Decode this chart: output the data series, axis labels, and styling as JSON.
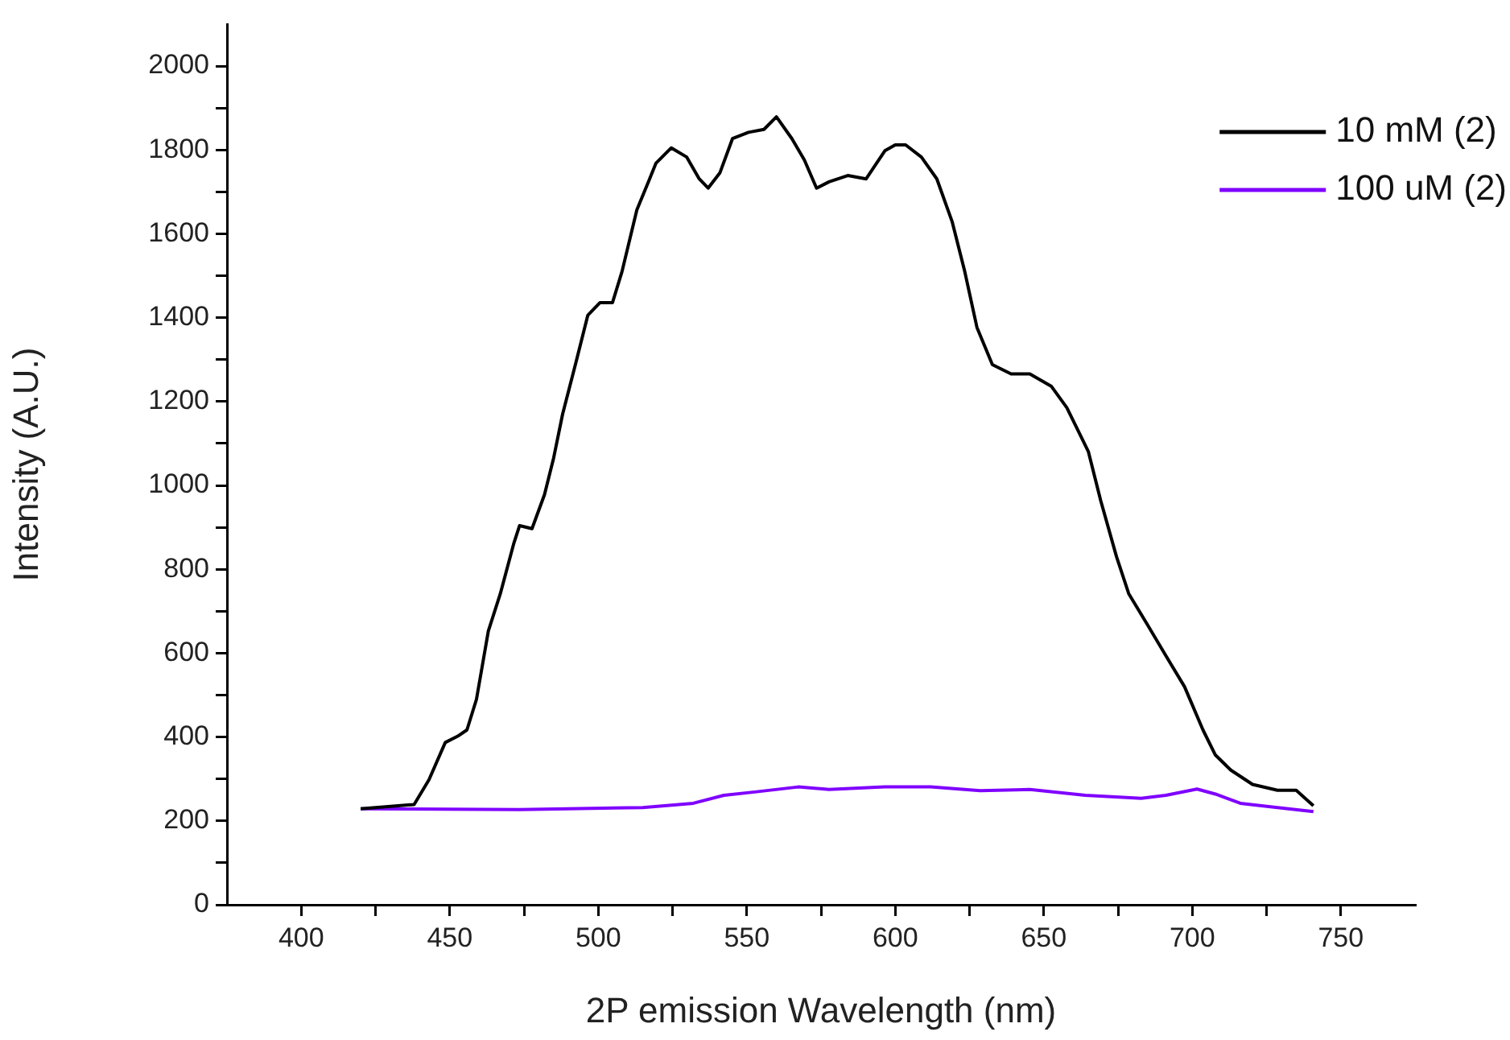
{
  "chart_data": {
    "type": "line",
    "xlabel": "2P emission Wavelength (nm)",
    "ylabel": "Intensity (A.U.)",
    "xlim": [
      375,
      775
    ],
    "ylim": [
      0,
      2100
    ],
    "xticks": [
      400,
      {
        "value": 425,
        "label": null
      },
      450,
      {
        "value": 475,
        "label": null
      },
      500,
      {
        "value": 525,
        "label": null
      },
      550,
      {
        "value": 575,
        "label": null
      },
      600,
      {
        "value": 625,
        "label": null
      },
      650,
      {
        "value": 675,
        "label": null
      },
      700,
      {
        "value": 725,
        "label": null
      },
      750
    ],
    "yticks": [
      0,
      {
        "value": 100,
        "label": null
      },
      200,
      {
        "value": 300,
        "label": null
      },
      400,
      {
        "value": 500,
        "label": null
      },
      600,
      {
        "value": 700,
        "label": null
      },
      800,
      {
        "value": 900,
        "label": null
      },
      1000,
      {
        "value": 1100,
        "label": null
      },
      1200,
      {
        "value": 1300,
        "label": null
      },
      1400,
      {
        "value": 1500,
        "label": null
      },
      1600,
      {
        "value": 1700,
        "label": null
      },
      1800,
      {
        "value": 1900,
        "label": null
      },
      2000
    ],
    "grid": false,
    "legend": "top right",
    "marker": "none",
    "line_style": "solid",
    "series": [
      {
        "name": "10 mM (2)",
        "color": "#000000",
        "x": [
          420,
          438,
          443,
          448.5,
          452.7,
          455.8,
          459,
          463,
          467,
          471.5,
          473.5,
          477.7,
          481.9,
          485,
          488,
          492.3,
          496.5,
          500.6,
          504.8,
          508,
          513,
          517.3,
          519.4,
          524.6,
          529.8,
          534,
          537,
          541,
          545.2,
          550.6,
          555.8,
          560,
          565.2,
          569.4,
          573.5,
          577.7,
          584,
          590.2,
          596.5,
          600,
          603.5,
          608.8,
          614,
          619.2,
          623.4,
          627.5,
          632.7,
          639,
          645.3,
          652.6,
          657.8,
          665,
          669.2,
          674.5,
          678.6,
          684.9,
          691.1,
          697.4,
          703.6,
          707.8,
          713,
          720.3,
          728.7,
          735,
          738,
          740.8
        ],
        "values": [
          229,
          239,
          298,
          387,
          402,
          417,
          490,
          653,
          741,
          860,
          904,
          897,
          978,
          1066,
          1170,
          1288,
          1406,
          1436,
          1436,
          1510,
          1657,
          1731,
          1768,
          1805,
          1783,
          1731,
          1709,
          1746,
          1827,
          1842,
          1849,
          1879,
          1827,
          1776,
          1709,
          1724,
          1739,
          1731,
          1798,
          1812,
          1812,
          1783,
          1731,
          1628,
          1510,
          1377,
          1288,
          1266,
          1266,
          1236,
          1185,
          1081,
          963,
          830,
          742,
          668,
          594,
          520,
          417,
          357,
          321,
          287,
          273,
          273,
          254,
          236
        ]
      },
      {
        "name": "100 uM (2)",
        "color": "#7f00ff",
        "x": [
          420,
          473.5,
          515,
          532,
          542.3,
          552.7,
          567.3,
          577.7,
          596.5,
          611.9,
          628.6,
          645.3,
          664,
          682.8,
          691.1,
          701.6,
          707.8,
          716.2,
          728.7,
          740.8
        ],
        "values": [
          229,
          227,
          232,
          242,
          261,
          269,
          281,
          275,
          281,
          281,
          272,
          275,
          261,
          254,
          261,
          276,
          264,
          242,
          232,
          222
        ]
      }
    ]
  }
}
